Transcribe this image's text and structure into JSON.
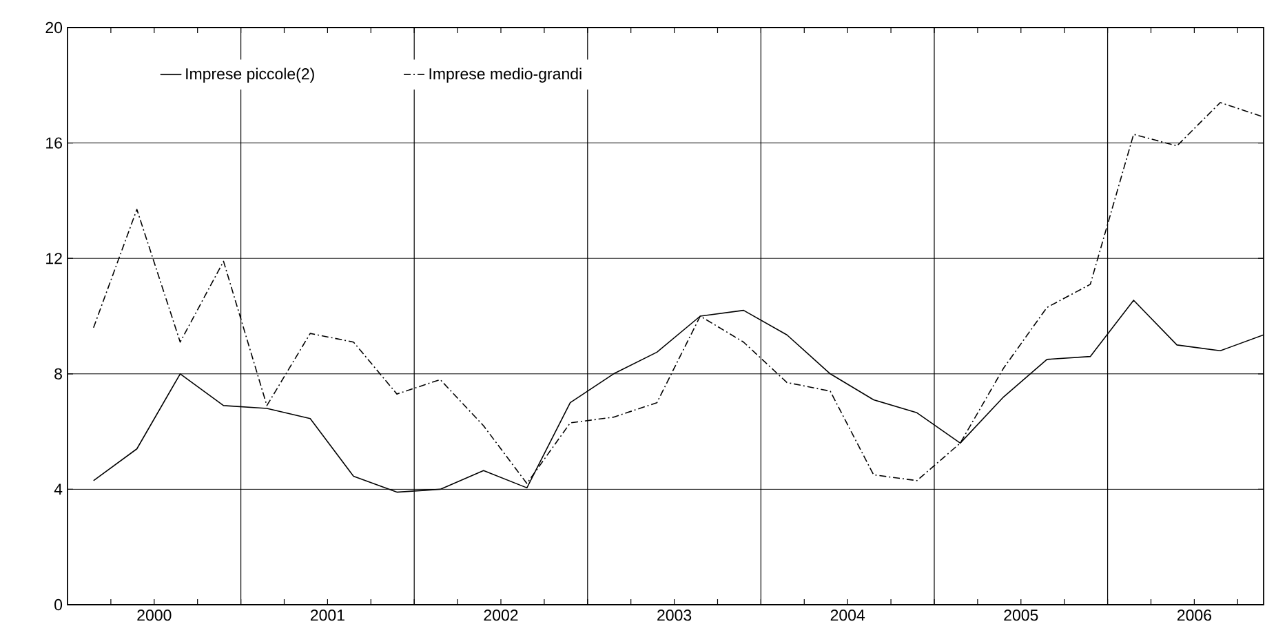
{
  "chart_data": {
    "type": "line",
    "x": [
      2000.15,
      2000.4,
      2000.65,
      2000.9,
      2001.15,
      2001.4,
      2001.65,
      2001.9,
      2002.15,
      2002.4,
      2002.65,
      2002.9,
      2003.15,
      2003.4,
      2003.65,
      2003.9,
      2004.15,
      2004.4,
      2004.65,
      2004.9,
      2005.15,
      2005.4,
      2005.65,
      2005.9,
      2006.15,
      2006.4,
      2006.65,
      2006.9
    ],
    "series": [
      {
        "name": "Imprese piccole(2)",
        "color": "#000000",
        "line_style": "solid",
        "values": [
          4.3,
          5.4,
          8.0,
          6.9,
          6.8,
          6.45,
          4.45,
          3.9,
          4.0,
          4.65,
          4.05,
          7.0,
          8.0,
          8.75,
          10.0,
          10.2,
          9.35,
          8.0,
          7.1,
          6.65,
          5.6,
          7.2,
          8.5,
          8.6,
          10.55,
          9.0,
          8.8,
          9.35
        ]
      },
      {
        "name": "Imprese medio-grandi",
        "color": "#000000",
        "line_style": "dashdot",
        "values": [
          9.6,
          13.7,
          9.1,
          11.9,
          6.9,
          9.4,
          9.1,
          7.3,
          7.8,
          6.2,
          4.2,
          6.3,
          6.5,
          7.0,
          10.0,
          9.1,
          7.7,
          7.4,
          4.5,
          4.3,
          5.6,
          8.2,
          10.3,
          11.1,
          16.3,
          15.9,
          17.4,
          16.9
        ]
      }
    ],
    "xlim": [
      2000,
      2006.9
    ],
    "xticks": [
      {
        "value": 2000.25,
        "label": null
      },
      {
        "value": 2000.5,
        "label": "2000"
      },
      {
        "value": 2000.75,
        "label": null
      },
      {
        "value": 2001,
        "label": null
      },
      {
        "value": 2001.25,
        "label": null
      },
      {
        "value": 2001.5,
        "label": "2001"
      },
      {
        "value": 2001.75,
        "label": null
      },
      {
        "value": 2002,
        "label": null
      },
      {
        "value": 2002.25,
        "label": null
      },
      {
        "value": 2002.5,
        "label": "2002"
      },
      {
        "value": 2002.75,
        "label": null
      },
      {
        "value": 2003,
        "label": null
      },
      {
        "value": 2003.25,
        "label": null
      },
      {
        "value": 2003.5,
        "label": "2003"
      },
      {
        "value": 2003.75,
        "label": null
      },
      {
        "value": 2004,
        "label": null
      },
      {
        "value": 2004.25,
        "label": null
      },
      {
        "value": 2004.5,
        "label": "2004"
      },
      {
        "value": 2004.75,
        "label": null
      },
      {
        "value": 2005,
        "label": null
      },
      {
        "value": 2005.25,
        "label": null
      },
      {
        "value": 2005.5,
        "label": "2005"
      },
      {
        "value": 2005.75,
        "label": null
      },
      {
        "value": 2006,
        "label": null
      },
      {
        "value": 2006.25,
        "label": null
      },
      {
        "value": 2006.5,
        "label": "2006"
      },
      {
        "value": 2006.75,
        "label": null
      }
    ],
    "ylim": [
      0,
      20
    ],
    "yticks": [
      0,
      4,
      8,
      12,
      16,
      20
    ],
    "grid": "y",
    "ref_lines": [
      {
        "axis": "x",
        "value": 2001,
        "color": "#000000"
      },
      {
        "axis": "x",
        "value": 2002,
        "color": "#000000"
      },
      {
        "axis": "x",
        "value": 2003,
        "color": "#000000"
      },
      {
        "axis": "x",
        "value": 2004,
        "color": "#000000"
      },
      {
        "axis": "x",
        "value": 2005,
        "color": "#000000"
      },
      {
        "axis": "x",
        "value": 2006,
        "color": "#000000"
      }
    ],
    "legend": "top",
    "marker": "none"
  }
}
